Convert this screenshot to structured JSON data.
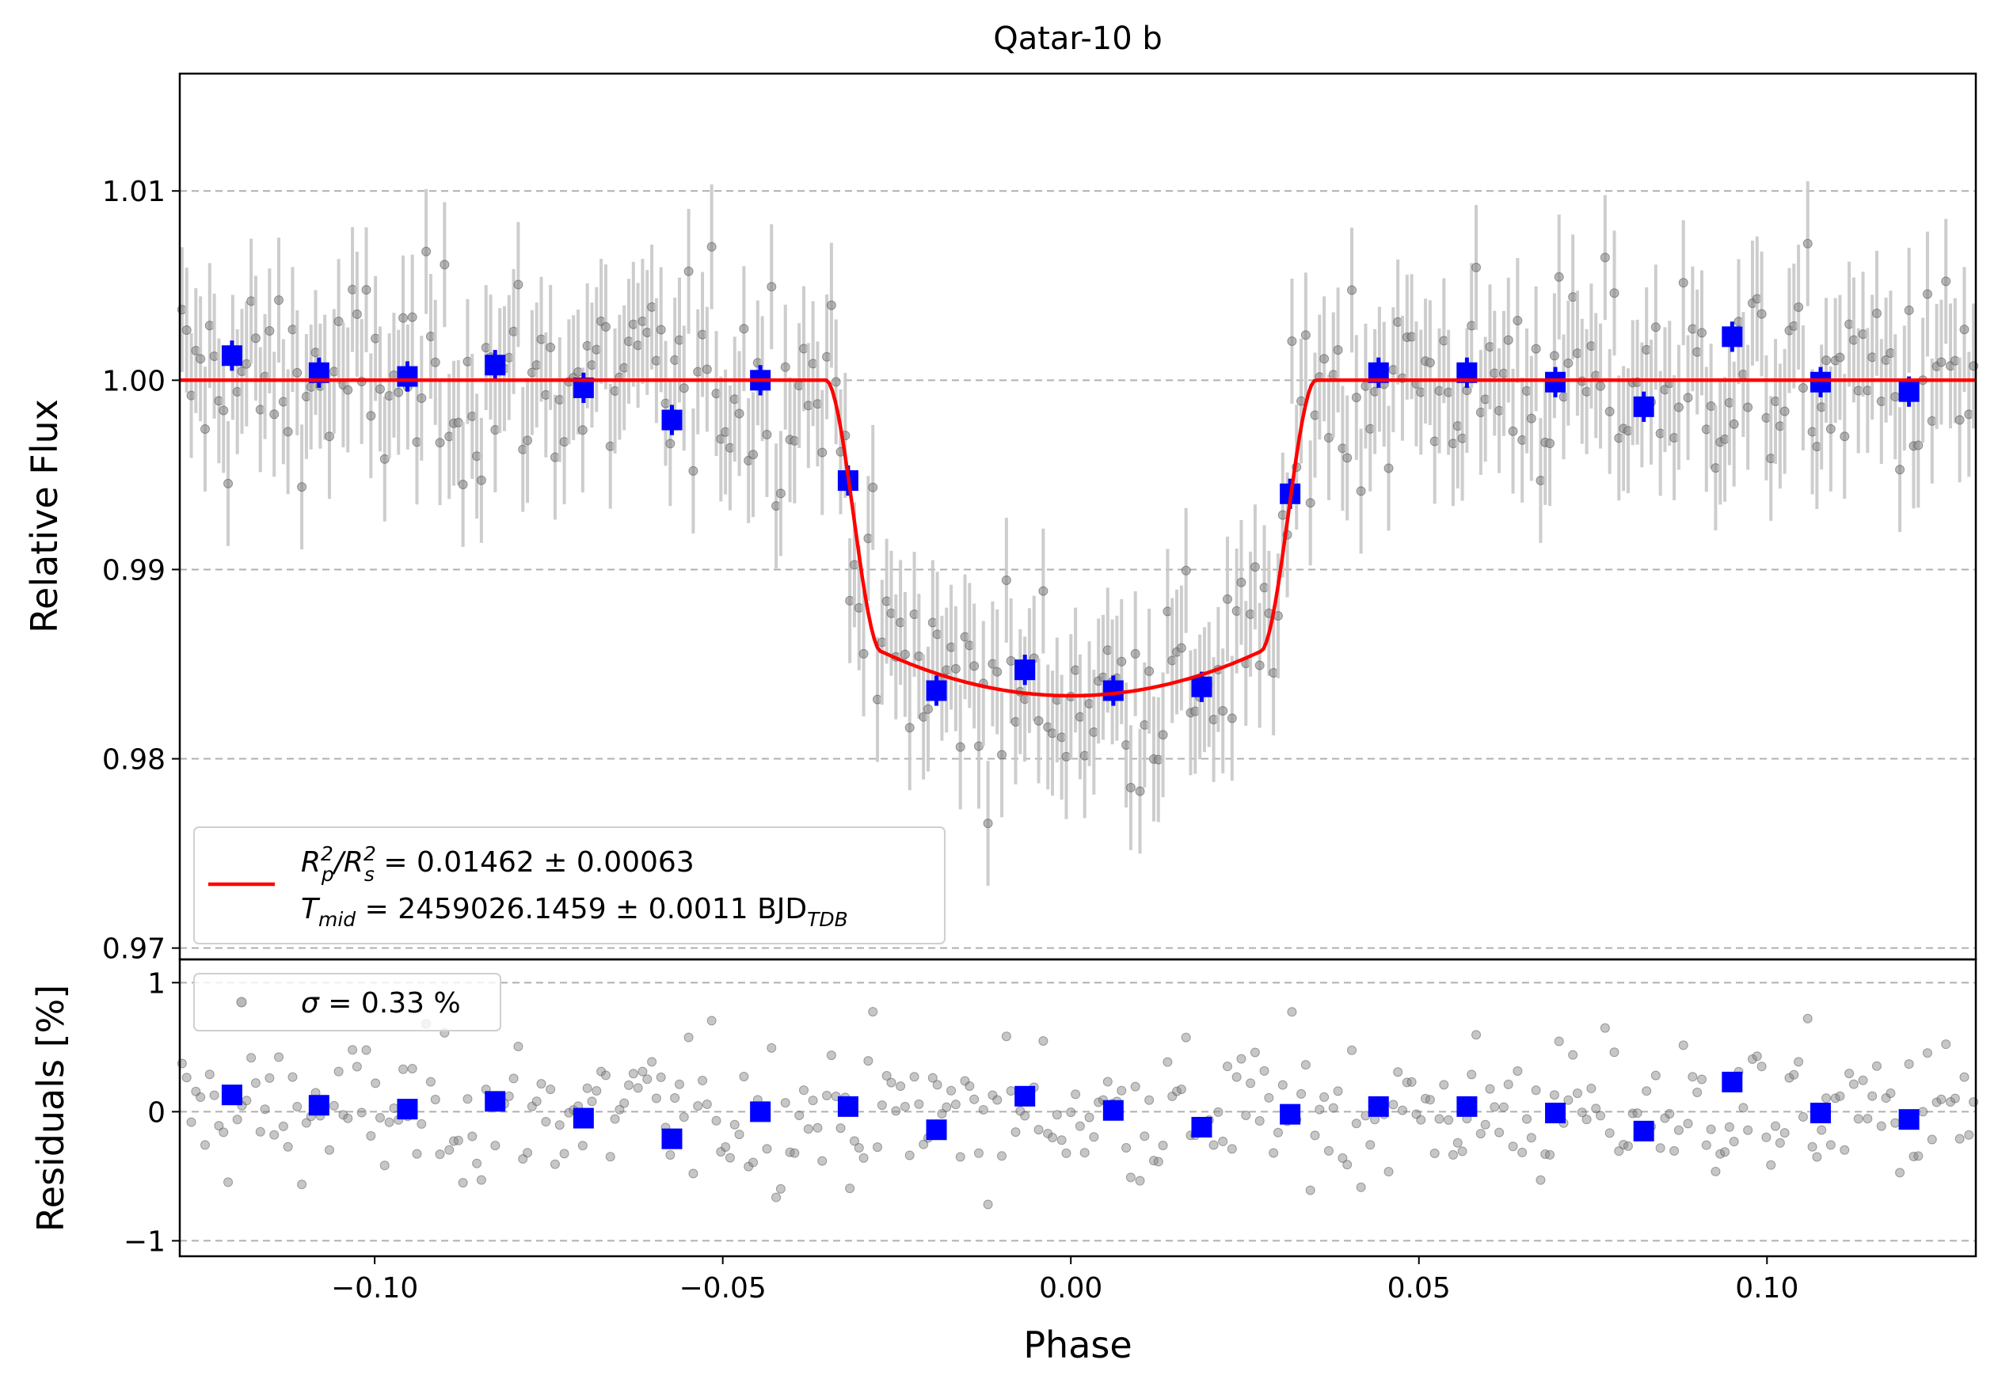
{
  "chart_data": [
    {
      "panel": "top",
      "type": "scatter",
      "title": "Qatar-10 b",
      "ylabel": "Relative Flux",
      "xlim": [
        -0.128,
        0.13
      ],
      "ylim": [
        0.9694,
        1.0162
      ],
      "yticks": [
        0.97,
        0.98,
        0.99,
        1.0,
        1.01
      ],
      "ytick_labels": [
        "0.97",
        "0.98",
        "0.99",
        "1.00",
        "1.01"
      ],
      "grid": "horizontal dashed",
      "legend": {
        "placement": "lower-left",
        "line1": "R_p^2/R_s^2 = 0.01462 ± 0.00063",
        "line1_name": "R",
        "line1_sub_a": "p",
        "line1_sup_a": "2",
        "line1_slash": "/R",
        "line1_sub_b": "s",
        "line1_sup_b": "2",
        "line1_rest": " = 0.01462 ± 0.00063",
        "line2_name": "T",
        "line2_sub": "mid",
        "line2_rest": " = 2459026.1459 ± 0.0011 BJD",
        "line2_unit_sub": "TDB"
      },
      "colors": {
        "model": "#ff0000",
        "binned": "#0000ff",
        "raw": "#808080",
        "errorbar": "#c8c8c8",
        "grid": "#b0b0b0"
      },
      "model": {
        "name": "transit model",
        "baseline": 1.0,
        "depth_min": 0.98333,
        "t1": -0.0352,
        "t2": -0.0272,
        "t3": 0.0272,
        "t4": 0.0352
      },
      "binned": {
        "x": [
          -0.1205,
          -0.108,
          -0.0953,
          -0.0827,
          -0.07,
          -0.0573,
          -0.0446,
          -0.032,
          -0.0193,
          -0.0066,
          0.0061,
          0.0188,
          0.0315,
          0.0442,
          0.0569,
          0.0696,
          0.0823,
          0.095,
          0.1077,
          0.1204
        ],
        "y": [
          1.0013,
          1.0004,
          1.0002,
          1.0008,
          0.9996,
          0.9979,
          1.0,
          0.9947,
          0.9836,
          0.9847,
          0.9836,
          0.9838,
          0.994,
          1.0004,
          1.0004,
          0.9999,
          0.9986,
          1.0023,
          0.9999,
          0.9994
        ],
        "yerr": [
          0.0008,
          0.0008,
          0.0008,
          0.0008,
          0.0008,
          0.0008,
          0.0008,
          0.0008,
          0.0008,
          0.0008,
          0.0008,
          0.0008,
          0.0008,
          0.0008,
          0.0008,
          0.0008,
          0.0008,
          0.0008,
          0.0008,
          0.0008
        ]
      },
      "raw": {
        "n_points": 390,
        "xmin": -0.128,
        "xmax": 0.13,
        "scatter_sigma": 0.0033,
        "yerr": 0.0033
      }
    },
    {
      "panel": "bottom",
      "type": "scatter",
      "xlabel": "Phase",
      "ylabel": "Residuals [%]",
      "xlim": [
        -0.128,
        0.13
      ],
      "ylim": [
        -1.12,
        1.18
      ],
      "xticks": [
        -0.1,
        -0.05,
        0.0,
        0.05,
        0.1
      ],
      "xtick_labels": [
        "−0.10",
        "−0.05",
        "0.00",
        "0.05",
        "0.10"
      ],
      "yticks": [
        -1,
        0,
        1
      ],
      "ytick_labels": [
        "−1",
        "0",
        "1"
      ],
      "grid": "horizontal dashed",
      "legend": {
        "placement": "top-left",
        "sigma_symbol": "σ",
        "text": " = 0.33 %"
      },
      "binned": {
        "x": [
          -0.1205,
          -0.108,
          -0.0953,
          -0.0827,
          -0.07,
          -0.0573,
          -0.0446,
          -0.032,
          -0.0193,
          -0.0066,
          0.0061,
          0.0188,
          0.0315,
          0.0442,
          0.0569,
          0.0696,
          0.0823,
          0.095,
          0.1077,
          0.1204
        ],
        "y": [
          0.13,
          0.05,
          0.02,
          0.08,
          -0.05,
          -0.21,
          0.0,
          0.04,
          -0.14,
          0.12,
          0.01,
          -0.12,
          -0.02,
          0.04,
          0.04,
          -0.01,
          -0.15,
          0.23,
          -0.01,
          -0.06
        ]
      }
    }
  ]
}
